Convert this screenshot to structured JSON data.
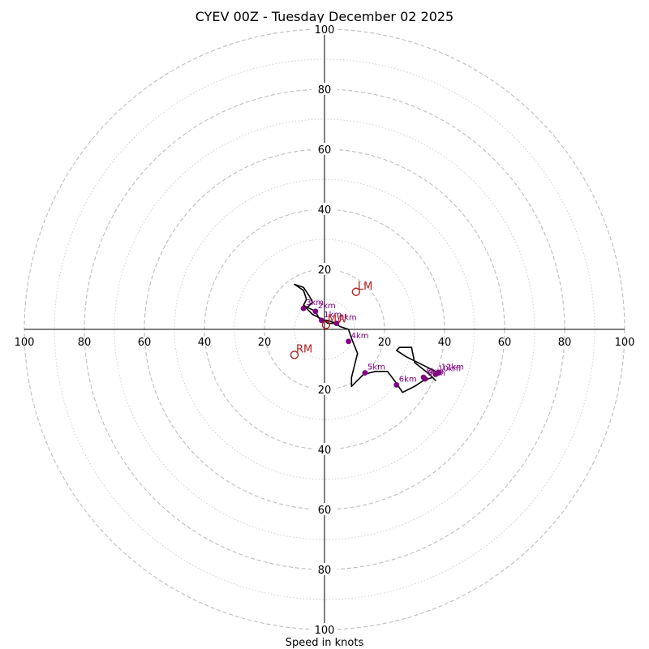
{
  "chart_data": {
    "type": "hodograph",
    "title": "CYEV 00Z - Tuesday December 02 2025",
    "xlabel": "Speed in knots",
    "range": [
      -100,
      100
    ],
    "ring_major": [
      20,
      40,
      60,
      80,
      100
    ],
    "ring_minor": [
      10,
      30,
      50,
      70,
      90
    ],
    "tick_labels": {
      "right": [
        "20",
        "40",
        "60",
        "80",
        "100"
      ],
      "left": [
        "20",
        "40",
        "60",
        "80",
        "100"
      ],
      "up": [
        "20",
        "40",
        "60",
        "80",
        "100"
      ],
      "down": [
        "20",
        "40",
        "60",
        "80",
        "100"
      ]
    },
    "trace": [
      [
        4,
        2
      ],
      [
        1,
        2
      ],
      [
        0,
        3
      ],
      [
        -2,
        4
      ],
      [
        -3,
        6
      ],
      [
        -5,
        7
      ],
      [
        -7,
        8
      ],
      [
        -6,
        10
      ],
      [
        -7,
        13
      ],
      [
        -10,
        15
      ],
      [
        -7,
        14
      ],
      [
        -5,
        11
      ],
      [
        -4,
        9
      ],
      [
        -6,
        7
      ],
      [
        -4,
        5
      ],
      [
        -2,
        4
      ],
      [
        -1,
        3
      ],
      [
        1,
        3
      ],
      [
        4,
        2
      ],
      [
        5,
        1
      ],
      [
        8,
        0
      ],
      [
        9,
        -3
      ],
      [
        11,
        -8
      ],
      [
        10,
        -12
      ],
      [
        9,
        -16
      ],
      [
        9,
        -19
      ],
      [
        11,
        -17
      ],
      [
        13,
        -15
      ],
      [
        17,
        -14
      ],
      [
        21,
        -14
      ],
      [
        24,
        -18
      ],
      [
        26,
        -21
      ],
      [
        30,
        -19
      ],
      [
        33,
        -17
      ],
      [
        36,
        -16
      ],
      [
        37,
        -17
      ],
      [
        35,
        -15
      ],
      [
        30,
        -11
      ],
      [
        29,
        -6
      ],
      [
        25,
        -6
      ],
      [
        24,
        -7
      ],
      [
        27,
        -9
      ],
      [
        31,
        -11
      ],
      [
        37,
        -14
      ],
      [
        38,
        -14
      ]
    ],
    "height_markers": [
      {
        "label": "0km",
        "u": 4,
        "v": 2
      },
      {
        "label": "1km",
        "u": -1,
        "v": 3
      },
      {
        "label": "2km",
        "u": -3,
        "v": 6
      },
      {
        "label": "3km",
        "u": -7,
        "v": 7
      },
      {
        "label": "4km",
        "u": 8,
        "v": -4
      },
      {
        "label": "5km",
        "u": 13.5,
        "v": -14.5
      },
      {
        "label": "6km",
        "u": 24,
        "v": -18.5
      },
      {
        "label": "8km",
        "u": 33,
        "v": -16
      },
      {
        "label": "9km",
        "u": 33.5,
        "v": -16.5
      },
      {
        "label": "12km",
        "u": 38,
        "v": -14.5
      },
      {
        "label": "10km",
        "u": 37,
        "v": -15
      }
    ],
    "storm_motions": [
      {
        "label": "LM",
        "u": 10.5,
        "v": 12.5
      },
      {
        "label": "RM",
        "u": -10,
        "v": -8.5
      },
      {
        "label": "MW",
        "u": 0.5,
        "v": 1.5
      }
    ]
  }
}
